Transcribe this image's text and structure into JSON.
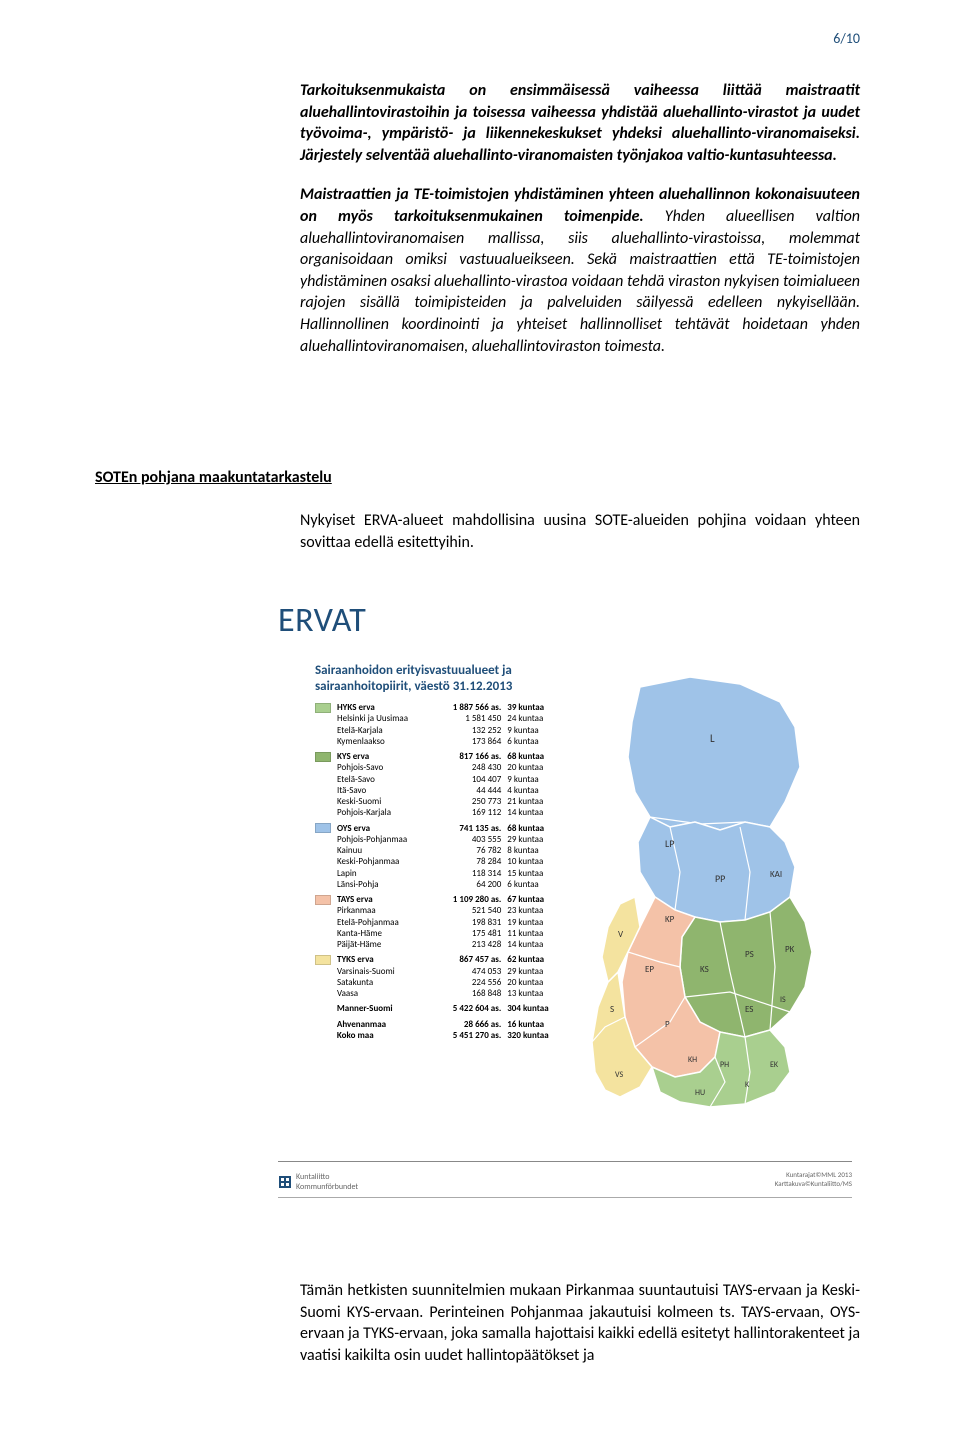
{
  "page_number": "6/10",
  "para1_lead": "Tarkoituksenmukaista on ensimmäisessä vaiheessa liittää maistraatit aluehallintovirastoihin ja toisessa vaiheessa yhdistää aluehallinto-virastot ja uudet työvoima-, ympäristö- ja liikennekeskukset yhdeksi aluehallinto-viranomaiseksi. Järjestely selventää aluehallinto-viranomaisten työnjakoa valtio-kuntasuhteessa.",
  "para2_bold": "Maistraattien ja TE-toimistojen yhdistäminen yhteen aluehallinnon kokonaisuuteen on myös tarkoituksenmukainen toimenpide.",
  "para2_rest": " Yhden alueellisen valtion aluehallintoviranomaisen mallissa, siis aluehallinto-virastoissa, molemmat organisoidaan omiksi vastuualueikseen. Sekä maistraattien että TE-toimistojen yhdistäminen osaksi aluehallinto-virastoa voidaan tehdä viraston nykyisen toimialueen rajojen sisällä toimipisteiden ja palveluiden säilyessä edelleen nykyisellään. Hallinnollinen koordinointi ja yhteiset hallinnolliset tehtävät hoidetaan yhden aluehallintoviranomaisen, aluehallintoviraston toimesta.",
  "section_heading": "SOTEn pohjana maakuntatarkastelu",
  "para3": "Nykyiset ERVA-alueet mahdollisina uusina SOTE-alueiden pohjina voidaan yhteen sovittaa edellä esitettyihin.",
  "ervat": {
    "title": "ERVAT",
    "subtitle1": "Sairaanhoidon erityisvastuualueet ja",
    "subtitle2": "sairaanhoitopiirit, väestö 31.12.2013",
    "colors": {
      "hyks": "#a9cf8f",
      "kys": "#8fb56e",
      "oys": "#9fc3e8",
      "tays": "#f4c2a8",
      "tyks": "#f4e39f"
    },
    "groups": [
      {
        "key": "hyks",
        "name": "HYKS erva",
        "pop": "1 887 566 as.",
        "kuntaa": "39 kuntaa",
        "sub": [
          {
            "n": "Helsinki ja Uusimaa",
            "p": "1 581 450",
            "k": "24 kuntaa"
          },
          {
            "n": "Etelä-Karjala",
            "p": "132 252",
            "k": "9 kuntaa"
          },
          {
            "n": "Kymenlaakso",
            "p": "173 864",
            "k": "6 kuntaa"
          }
        ]
      },
      {
        "key": "kys",
        "name": "KYS erva",
        "pop": "817 166 as.",
        "kuntaa": "68 kuntaa",
        "sub": [
          {
            "n": "Pohjois-Savo",
            "p": "248 430",
            "k": "20 kuntaa"
          },
          {
            "n": "Etelä-Savo",
            "p": "104 407",
            "k": "9 kuntaa"
          },
          {
            "n": "Itä-Savo",
            "p": "44 444",
            "k": "4 kuntaa"
          },
          {
            "n": "Keski-Suomi",
            "p": "250 773",
            "k": "21 kuntaa"
          },
          {
            "n": "Pohjois-Karjala",
            "p": "169 112",
            "k": "14 kuntaa"
          }
        ]
      },
      {
        "key": "oys",
        "name": "OYS erva",
        "pop": "741 135 as.",
        "kuntaa": "68 kuntaa",
        "sub": [
          {
            "n": "Pohjois-Pohjanmaa",
            "p": "403 555",
            "k": "29 kuntaa"
          },
          {
            "n": "Kainuu",
            "p": "76 782",
            "k": "8 kuntaa"
          },
          {
            "n": "Keski-Pohjanmaa",
            "p": "78 284",
            "k": "10 kuntaa"
          },
          {
            "n": "Lapin",
            "p": "118 314",
            "k": "15 kuntaa"
          },
          {
            "n": "Länsi-Pohja",
            "p": "64 200",
            "k": "6 kuntaa"
          }
        ]
      },
      {
        "key": "tays",
        "name": "TAYS erva",
        "pop": "1 109 280 as.",
        "kuntaa": "67 kuntaa",
        "sub": [
          {
            "n": "Pirkanmaa",
            "p": "521 540",
            "k": "23 kuntaa"
          },
          {
            "n": "Etelä-Pohjanmaa",
            "p": "198 831",
            "k": "19 kuntaa"
          },
          {
            "n": "Kanta-Häme",
            "p": "175 481",
            "k": "11 kuntaa"
          },
          {
            "n": "Päijät-Häme",
            "p": "213 428",
            "k": "14 kuntaa"
          }
        ]
      },
      {
        "key": "tyks",
        "name": "TYKS erva",
        "pop": "867 457 as.",
        "kuntaa": "62 kuntaa",
        "sub": [
          {
            "n": "Varsinais-Suomi",
            "p": "474 053",
            "k": "29 kuntaa"
          },
          {
            "n": "Satakunta",
            "p": "224 556",
            "k": "20 kuntaa"
          },
          {
            "n": "Vaasa",
            "p": "168 848",
            "k": "13 kuntaa"
          }
        ]
      }
    ],
    "totals": [
      {
        "n": "Manner-Suomi",
        "p": "5 422 604 as.",
        "k": "304 kuntaa"
      },
      {
        "n": "Ahvenanmaa",
        "p": "28 666 as.",
        "k": "16 kuntaa"
      },
      {
        "n": "Koko maa",
        "p": "5 451 270 as.",
        "k": "320 kuntaa"
      }
    ],
    "footer_left1": "Kuntaliitto",
    "footer_left2": "Kommunförbundet",
    "footer_right1": "Kuntarajat©MML 2013",
    "footer_right2": "Karttakuva©Kuntaliitto/MS",
    "map_labels": [
      "L",
      "LP",
      "PP",
      "KAI",
      "KP",
      "V",
      "EP",
      "KS",
      "PS",
      "PK",
      "ES",
      "IS",
      "S",
      "P",
      "KH",
      "PH",
      "EK",
      "K",
      "HU",
      "VS"
    ]
  },
  "bottom_para": "Tämän hetkisten suunnitelmien mukaan Pirkanmaa suuntautuisi TAYS-ervaan ja Keski-Suomi KYS-ervaan. Perinteinen Pohjanmaa jakautuisi kolmeen ts. TAYS-ervaan, OYS-ervaan ja TYKS-ervaan, joka samalla hajottaisi kaikki edellä esitetyt hallintorakenteet ja vaatisi kaikilta osin uudet hallintopäätökset ja"
}
